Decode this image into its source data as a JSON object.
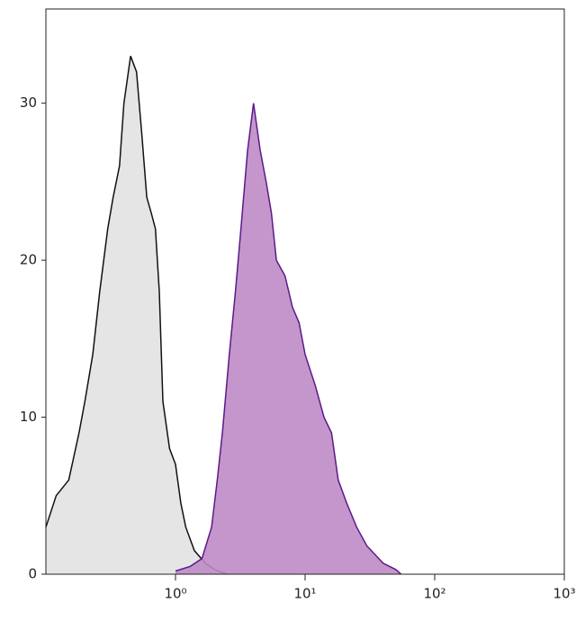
{
  "chart_data": {
    "type": "area",
    "xscale": "log",
    "xlim": [
      0.1,
      1000
    ],
    "ylim": [
      0,
      36
    ],
    "xticks": [
      {
        "value": 1,
        "label": "10⁰"
      },
      {
        "value": 10,
        "label": "10¹"
      },
      {
        "value": 100,
        "label": "10²"
      },
      {
        "value": 1000,
        "label": "10³"
      }
    ],
    "yticks": [
      0,
      10,
      20,
      30
    ],
    "series": [
      {
        "color": "#111111",
        "fill": "#e2e2e2",
        "x": [
          0.1,
          0.12,
          0.15,
          0.18,
          0.2,
          0.23,
          0.26,
          0.3,
          0.33,
          0.37,
          0.4,
          0.45,
          0.5,
          0.55,
          0.6,
          0.65,
          0.7,
          0.75,
          0.8,
          0.9,
          1.0,
          1.1,
          1.2,
          1.4,
          1.7,
          2,
          2.5
        ],
        "values": [
          3,
          5,
          6,
          9,
          11,
          14,
          18,
          22,
          24,
          26,
          30,
          33,
          32,
          28,
          24,
          23,
          22,
          18,
          11,
          8,
          7,
          4.5,
          3,
          1.5,
          0.7,
          0.3,
          0
        ]
      },
      {
        "color": "#5a1a8a",
        "fill": "#bf8bc5",
        "x": [
          1,
          1.3,
          1.6,
          1.9,
          2.1,
          2.3,
          2.6,
          2.9,
          3.2,
          3.6,
          4.0,
          4.5,
          5,
          5.5,
          6,
          7,
          8,
          9,
          10,
          12,
          14,
          16,
          18,
          21,
          25,
          30,
          40,
          50,
          55
        ],
        "values": [
          0.2,
          0.5,
          1,
          3,
          6,
          9,
          14,
          18,
          22,
          27,
          30,
          27,
          25,
          23,
          20,
          19,
          17,
          16,
          14,
          12,
          10,
          9,
          6,
          4.5,
          3,
          1.8,
          0.7,
          0.3,
          0
        ]
      }
    ]
  }
}
